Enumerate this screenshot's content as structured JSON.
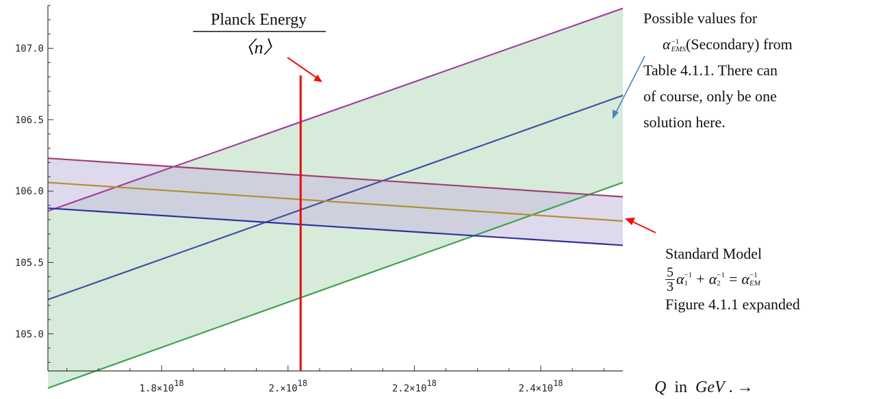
{
  "chart_data": {
    "type": "line",
    "xlim": [
      1.62e+18,
      2.53e+18
    ],
    "ylim": [
      104.74,
      107.3
    ],
    "x_ticks": [
      {
        "value": 1.8e+18,
        "mant": "1.8",
        "label": "1.8×10"
      },
      {
        "value": 2e+18,
        "mant": "2.",
        "label": "2.×10"
      },
      {
        "value": 2.2e+18,
        "mant": "2.2",
        "label": "2.2×10"
      },
      {
        "value": 2.4e+18,
        "mant": "2.4",
        "label": "2.4×10"
      }
    ],
    "x_tick_exponent": "18",
    "y_ticks": [
      {
        "value": 105.0,
        "label": "105.0"
      },
      {
        "value": 105.5,
        "label": "105.5"
      },
      {
        "value": 106.0,
        "label": "106.0"
      },
      {
        "value": 106.5,
        "label": "106.5"
      },
      {
        "value": 107.0,
        "label": "107.0"
      }
    ],
    "series": [
      {
        "color": "#a040a0",
        "x": [
          1.62e+18,
          2.53e+18
        ],
        "y": [
          105.86,
          107.28
        ]
      },
      {
        "color": "#4050a0",
        "x": [
          1.62e+18,
          2.53e+18
        ],
        "y": [
          105.24,
          106.67
        ]
      },
      {
        "color": "#40a050",
        "x": [
          1.62e+18,
          2.53e+18
        ],
        "y": [
          104.62,
          106.06
        ]
      },
      {
        "color": "#a04070",
        "x": [
          1.62e+18,
          2.53e+18
        ],
        "y": [
          106.23,
          105.96
        ]
      },
      {
        "color": "#b09030",
        "x": [
          1.62e+18,
          2.53e+18
        ],
        "y": [
          106.06,
          105.79
        ]
      },
      {
        "color": "#3030a0",
        "x": [
          1.62e+18,
          2.53e+18
        ],
        "y": [
          105.88,
          105.62
        ]
      }
    ],
    "bands": [
      {
        "color": "#cfe8d4",
        "upper_series": 0,
        "lower_series": 2
      },
      {
        "color": "#c8c0e0",
        "upper_series": 3,
        "lower_series": 5
      }
    ],
    "planck_line": {
      "x": 2.02e+18,
      "y_top": 106.81,
      "color": "#ee0000"
    },
    "planck_label": {
      "numerator": "Planck Energy",
      "denominator": "〈n〉"
    },
    "xlabel": {
      "q": "Q",
      "in": "in",
      "gev": "GeV",
      "arrow": ". →"
    }
  },
  "annotations": {
    "right_line1": "Possible values for",
    "alpha_symbol": "α",
    "alpha_sup": "−1",
    "alpha_sub": "EMS",
    "right_line2_rest": "(Secondary) from",
    "right_line3": "Table 4.1.1. There can",
    "right_line4": "of course, only be one",
    "right_line5": "solution here.",
    "standard_model": "Standard Model",
    "frac_num": "5",
    "frac_den": "3",
    "eq_a1": "α",
    "eq_sub1": "1",
    "eq_sup": "−1",
    "eq_plus": "+",
    "eq_a2": "α",
    "eq_sub2": "2",
    "eq_equals": "=",
    "eq_a3": "α",
    "eq_sub3": "EM",
    "figure_ref": "Figure 4.1.1 expanded"
  },
  "colors": {
    "arrow_red": "#ee1111",
    "arrow_blue": "#4f81bd"
  }
}
